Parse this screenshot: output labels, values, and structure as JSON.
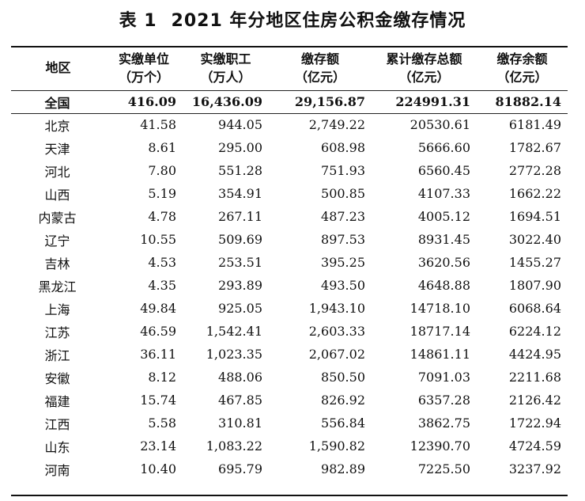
{
  "title": {
    "label": "表 1",
    "text": "2021 年分地区住房公积金缴存情况"
  },
  "columns": [
    {
      "line1": "地区",
      "line2": ""
    },
    {
      "line1": "实缴单位",
      "line2": "（万个）"
    },
    {
      "line1": "实缴职工",
      "line2": "（万人）"
    },
    {
      "line1": "缴存额",
      "line2": "（亿元）"
    },
    {
      "line1": "累计缴存总额",
      "line2": "（亿元）"
    },
    {
      "line1": "缴存余额",
      "line2": "（亿元）"
    }
  ],
  "rows": [
    [
      "全国",
      "416.09",
      "16,436.09",
      "29,156.87",
      "224991.31",
      "81882.14"
    ],
    [
      "北京",
      "41.58",
      "944.05",
      "2,749.22",
      "20530.61",
      "6181.49"
    ],
    [
      "天津",
      "8.61",
      "295.00",
      "608.98",
      "5666.60",
      "1782.67"
    ],
    [
      "河北",
      "7.80",
      "551.28",
      "751.93",
      "6560.45",
      "2772.28"
    ],
    [
      "山西",
      "5.19",
      "354.91",
      "500.85",
      "4107.33",
      "1662.22"
    ],
    [
      "内蒙古",
      "4.78",
      "267.11",
      "487.23",
      "4005.12",
      "1694.51"
    ],
    [
      "辽宁",
      "10.55",
      "509.69",
      "897.53",
      "8931.45",
      "3022.40"
    ],
    [
      "吉林",
      "4.53",
      "253.51",
      "395.25",
      "3620.56",
      "1455.27"
    ],
    [
      "黑龙江",
      "4.35",
      "293.89",
      "493.50",
      "4648.88",
      "1807.90"
    ],
    [
      "上海",
      "49.84",
      "925.05",
      "1,943.10",
      "14718.10",
      "6068.64"
    ],
    [
      "江苏",
      "46.59",
      "1,542.41",
      "2,603.33",
      "18717.14",
      "6224.12"
    ],
    [
      "浙江",
      "36.11",
      "1,023.35",
      "2,067.02",
      "14861.11",
      "4424.95"
    ],
    [
      "安徽",
      "8.12",
      "488.06",
      "850.50",
      "7091.03",
      "2211.68"
    ],
    [
      "福建",
      "15.74",
      "467.85",
      "826.92",
      "6357.28",
      "2126.42"
    ],
    [
      "江西",
      "5.58",
      "310.81",
      "556.84",
      "3862.75",
      "1722.94"
    ],
    [
      "山东",
      "23.14",
      "1,083.22",
      "1,590.82",
      "12390.70",
      "4724.59"
    ],
    [
      "河南",
      "10.40",
      "695.79",
      "982.89",
      "7225.50",
      "3237.92"
    ]
  ]
}
